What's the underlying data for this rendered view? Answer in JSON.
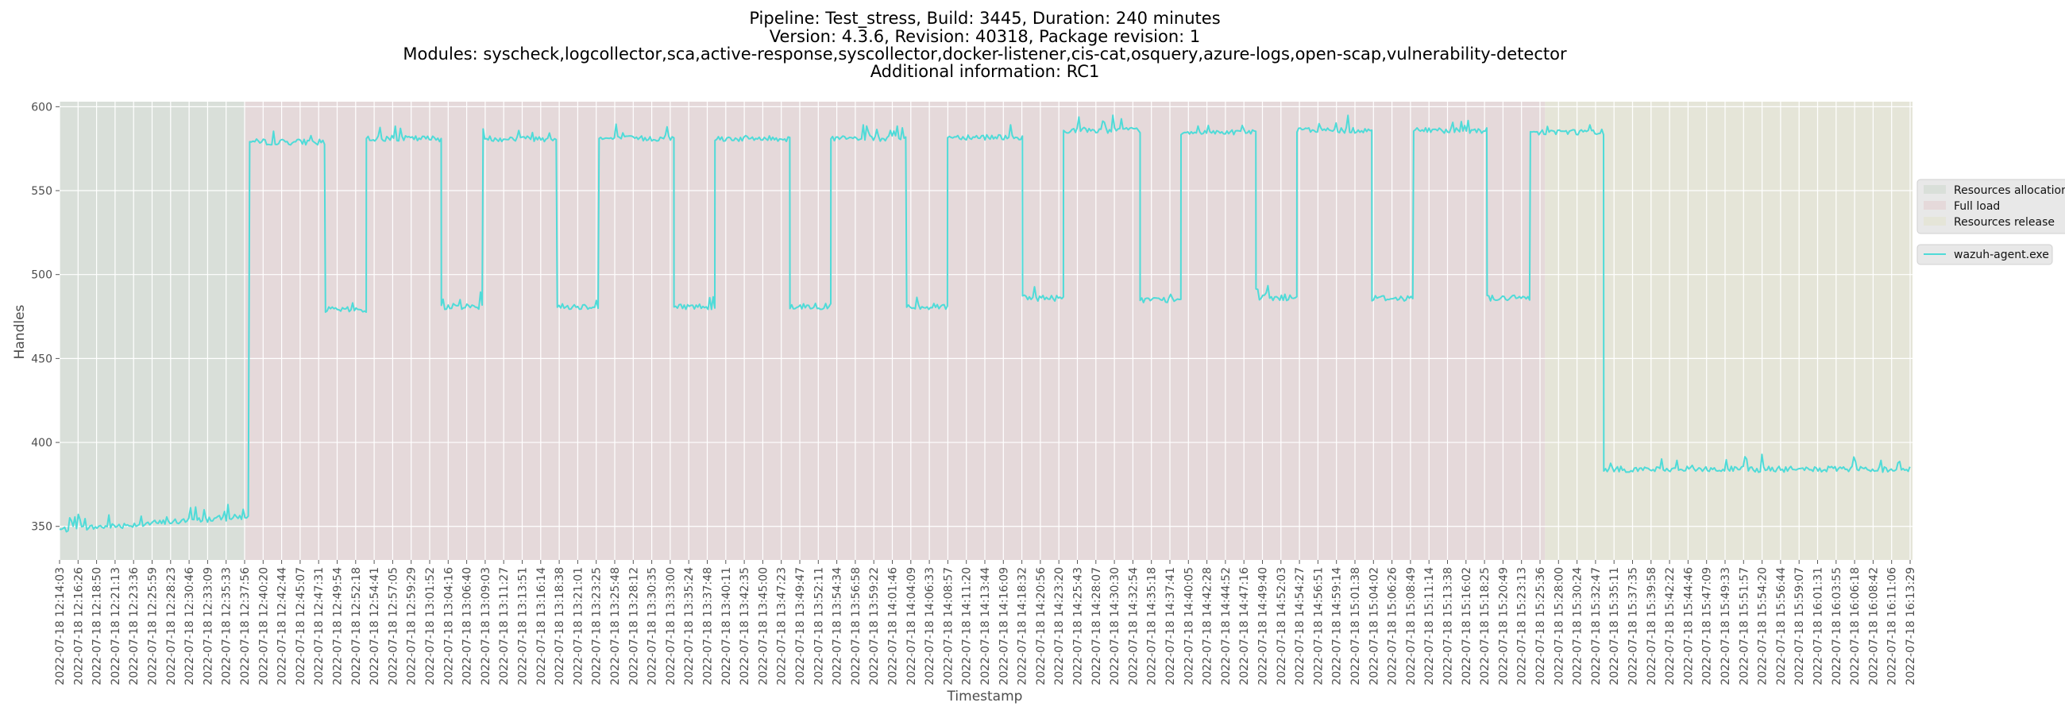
{
  "chart_data": {
    "type": "line",
    "title": [
      "Pipeline: Test_stress, Build: 3445, Duration: 240 minutes",
      "Version: 4.3.6, Revision: 40318, Package revision: 1",
      "Modules: syscheck,logcollector,sca,active-response,syscollector,docker-listener,cis-cat,osquery,azure-logs,open-scap,vulnerability-detector",
      "Additional information: RC1"
    ],
    "xlabel": "Timestamp",
    "ylabel": "Handles",
    "ylim": [
      330,
      603
    ],
    "yticks": [
      350,
      400,
      450,
      500,
      550,
      600
    ],
    "x_unit": "minutes since 2022-07-18 12:14:03",
    "xlim": [
      0,
      239.43
    ],
    "grid": true,
    "x_ticks": [
      "2022-07-18 12:14:03",
      "2022-07-18 12:16:26",
      "2022-07-18 12:18:50",
      "2022-07-18 12:21:13",
      "2022-07-18 12:23:36",
      "2022-07-18 12:25:59",
      "2022-07-18 12:28:23",
      "2022-07-18 12:30:46",
      "2022-07-18 12:33:09",
      "2022-07-18 12:35:33",
      "2022-07-18 12:37:56",
      "2022-07-18 12:40:20",
      "2022-07-18 12:42:44",
      "2022-07-18 12:45:07",
      "2022-07-18 12:47:31",
      "2022-07-18 12:49:54",
      "2022-07-18 12:52:18",
      "2022-07-18 12:54:41",
      "2022-07-18 12:57:05",
      "2022-07-18 12:59:29",
      "2022-07-18 13:01:52",
      "2022-07-18 13:04:16",
      "2022-07-18 13:06:40",
      "2022-07-18 13:09:03",
      "2022-07-18 13:11:27",
      "2022-07-18 13:13:51",
      "2022-07-18 13:16:14",
      "2022-07-18 13:18:38",
      "2022-07-18 13:21:01",
      "2022-07-18 13:23:25",
      "2022-07-18 13:25:48",
      "2022-07-18 13:28:12",
      "2022-07-18 13:30:35",
      "2022-07-18 13:33:00",
      "2022-07-18 13:35:24",
      "2022-07-18 13:37:48",
      "2022-07-18 13:40:11",
      "2022-07-18 13:42:35",
      "2022-07-18 13:45:00",
      "2022-07-18 13:47:23",
      "2022-07-18 13:49:47",
      "2022-07-18 13:52:11",
      "2022-07-18 13:54:34",
      "2022-07-18 13:56:58",
      "2022-07-18 13:59:22",
      "2022-07-18 14:01:46",
      "2022-07-18 14:04:09",
      "2022-07-18 14:06:33",
      "2022-07-18 14:08:57",
      "2022-07-18 14:11:20",
      "2022-07-18 14:13:44",
      "2022-07-18 14:16:09",
      "2022-07-18 14:18:32",
      "2022-07-18 14:20:56",
      "2022-07-18 14:23:20",
      "2022-07-18 14:25:43",
      "2022-07-18 14:28:07",
      "2022-07-18 14:30:30",
      "2022-07-18 14:32:54",
      "2022-07-18 14:35:18",
      "2022-07-18 14:37:41",
      "2022-07-18 14:40:05",
      "2022-07-18 14:42:28",
      "2022-07-18 14:44:52",
      "2022-07-18 14:47:16",
      "2022-07-18 14:49:40",
      "2022-07-18 14:52:03",
      "2022-07-18 14:54:27",
      "2022-07-18 14:56:51",
      "2022-07-18 14:59:14",
      "2022-07-18 15:01:38",
      "2022-07-18 15:04:02",
      "2022-07-18 15:06:26",
      "2022-07-18 15:08:49",
      "2022-07-18 15:11:14",
      "2022-07-18 15:13:38",
      "2022-07-18 15:16:02",
      "2022-07-18 15:18:25",
      "2022-07-18 15:20:49",
      "2022-07-18 15:23:13",
      "2022-07-18 15:25:36",
      "2022-07-18 15:28:00",
      "2022-07-18 15:30:24",
      "2022-07-18 15:32:47",
      "2022-07-18 15:35:11",
      "2022-07-18 15:37:35",
      "2022-07-18 15:39:58",
      "2022-07-18 15:42:22",
      "2022-07-18 15:44:46",
      "2022-07-18 15:47:09",
      "2022-07-18 15:49:33",
      "2022-07-18 15:51:57",
      "2022-07-18 15:54:20",
      "2022-07-18 15:56:44",
      "2022-07-18 15:59:07",
      "2022-07-18 16:01:31",
      "2022-07-18 16:03:55",
      "2022-07-18 16:06:18",
      "2022-07-18 16:08:42",
      "2022-07-18 16:11:06",
      "2022-07-18 16:13:29"
    ],
    "phases": [
      {
        "name": "Resources allocation",
        "start": 0,
        "end": 23.9,
        "color": "#d9dfd9"
      },
      {
        "name": "Full load",
        "start": 23.9,
        "end": 192.2,
        "color": "#e5d9da"
      },
      {
        "name": "Resources release",
        "start": 192.2,
        "end": 239.43,
        "color": "#e5e5d8"
      }
    ],
    "series": [
      {
        "name": "wazuh-agent.exe",
        "color": "#4fdbd8",
        "segments": [
          [
            0,
            24.6,
            348,
            356
          ],
          [
            24.6,
            34.4,
            579,
            579
          ],
          [
            34.4,
            39.7,
            479,
            479
          ],
          [
            39.7,
            49.4,
            581,
            581
          ],
          [
            49.4,
            54.8,
            481,
            481
          ],
          [
            54.8,
            64.4,
            581,
            581
          ],
          [
            64.4,
            69.8,
            481,
            481
          ],
          [
            69.8,
            79.5,
            581,
            581
          ],
          [
            79.5,
            84.8,
            481,
            481
          ],
          [
            84.8,
            94.5,
            581,
            581
          ],
          [
            94.5,
            99.8,
            481,
            481
          ],
          [
            99.8,
            109.6,
            581,
            581
          ],
          [
            109.6,
            114.9,
            481,
            481
          ],
          [
            114.9,
            124.6,
            582,
            582
          ],
          [
            124.6,
            129.9,
            486,
            486
          ],
          [
            129.9,
            139.8,
            586,
            586
          ],
          [
            139.8,
            145.1,
            485,
            485
          ],
          [
            145.1,
            154.8,
            585,
            585
          ],
          [
            154.8,
            160.1,
            486,
            486
          ],
          [
            160.1,
            169.8,
            586,
            586
          ],
          [
            169.8,
            175.2,
            486,
            486
          ],
          [
            175.2,
            184.7,
            586,
            586
          ],
          [
            184.7,
            190.3,
            486,
            486
          ],
          [
            190.3,
            199.8,
            585,
            585
          ],
          [
            199.8,
            239.43,
            384,
            384
          ]
        ]
      }
    ],
    "legend": {
      "placement": "right",
      "phase_items": [
        "Resources allocation",
        "Full load",
        "Resources release"
      ],
      "series_items": [
        "wazuh-agent.exe"
      ]
    }
  }
}
